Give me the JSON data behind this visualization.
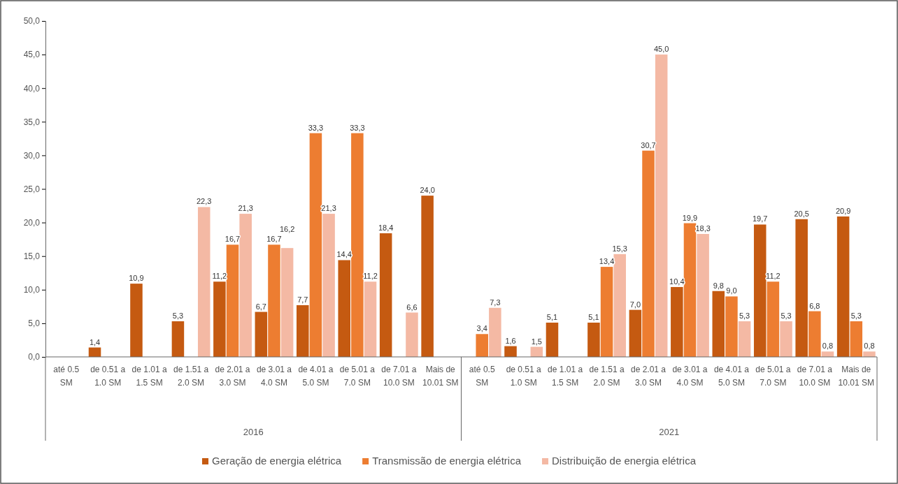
{
  "chart_data": {
    "type": "bar",
    "categories": [
      "até 0.5 SM",
      "de 0.51 a 1.0 SM",
      "de 1.01 a 1.5 SM",
      "de 1.51 a 2.0 SM",
      "de 2.01 a 3.0 SM",
      "de 3.01 a 4.0 SM",
      "de 4.01 a 5.0 SM",
      "de 5.01 a 7.0 SM",
      "de 7.01 a 10.0 SM",
      "Mais de 10.01 SM",
      "até 0.5 SM",
      "de 0.51 a 1.0 SM",
      "de 1.01 a 1.5 SM",
      "de 1.51 a 2.0 SM",
      "de 2.01 a 3.0 SM",
      "de 3.01 a 4.0 SM",
      "de 4.01 a 5.0 SM",
      "de 5.01 a 7.0 SM",
      "de 7.01 a 10.0 SM",
      "Mais de 10.01 SM"
    ],
    "annotations": [
      "2016",
      "2021"
    ],
    "series": [
      {
        "name": "Geração de energia elétrica",
        "color": "#c55a11",
        "values": [
          null,
          1.4,
          10.9,
          5.3,
          11.2,
          6.7,
          7.7,
          14.4,
          18.4,
          24.0,
          null,
          1.6,
          5.1,
          5.1,
          7.0,
          10.4,
          9.8,
          19.7,
          20.5,
          20.9
        ],
        "value_labels": [
          null,
          "1,4",
          "10,9",
          "5,3",
          "11,2",
          "6,7",
          "7,7",
          "14,4",
          "18,4",
          "24,0",
          null,
          "1,6",
          "5,1",
          "5,1",
          "7,0",
          "10,4",
          "9,8",
          "19,7",
          "20,5",
          "20,9"
        ]
      },
      {
        "name": "Transmissão de energia elétrica",
        "color": "#ed7d31",
        "values": [
          null,
          null,
          null,
          null,
          16.7,
          16.7,
          33.3,
          33.3,
          null,
          null,
          3.4,
          null,
          null,
          13.4,
          30.7,
          19.9,
          9.0,
          11.2,
          6.8,
          5.3
        ],
        "value_labels": [
          null,
          null,
          null,
          null,
          "16,7",
          "16,7",
          "33,3",
          "33,3",
          null,
          null,
          "3,4",
          null,
          null,
          "13,4",
          "30,7",
          "19,9",
          "9,0",
          "11,2",
          "6,8",
          "5,3"
        ]
      },
      {
        "name": "Distribuição de energia elétrica",
        "color": "#f4b9a4",
        "values": [
          null,
          null,
          null,
          22.3,
          21.3,
          16.2,
          21.3,
          11.2,
          6.6,
          null,
          7.3,
          1.5,
          null,
          15.3,
          45.0,
          18.3,
          5.3,
          5.3,
          0.8,
          0.8
        ],
        "value_labels": [
          null,
          null,
          null,
          "22,3",
          "21,3",
          "16,2",
          "21,3",
          "11,2",
          "6,6",
          null,
          "7,3",
          "1,5",
          null,
          "15,3",
          "45,0",
          "18,3",
          "5,3",
          "5,3",
          "0,8",
          "0,8"
        ]
      }
    ],
    "ylim": [
      0,
      50
    ],
    "yticks": [
      {
        "value": 0,
        "label": "0,0"
      },
      {
        "value": 5,
        "label": "5,0"
      },
      {
        "value": 10,
        "label": "10,0"
      },
      {
        "value": 15,
        "label": "15,0"
      },
      {
        "value": 20,
        "label": "20,0"
      },
      {
        "value": 25,
        "label": "25,0"
      },
      {
        "value": 30,
        "label": "30,0"
      },
      {
        "value": 35,
        "label": "35,0"
      },
      {
        "value": 40,
        "label": "40,0"
      },
      {
        "value": 45,
        "label": "45,0"
      },
      {
        "value": 50,
        "label": "50,0"
      }
    ],
    "grid": false,
    "legend": "bottom"
  }
}
